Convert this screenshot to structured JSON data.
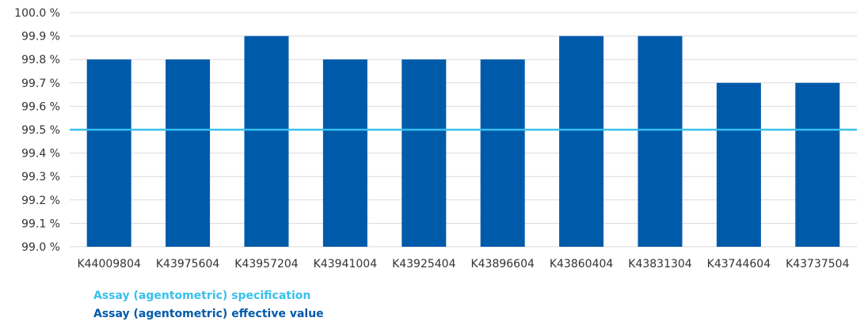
{
  "chart_data": {
    "type": "bar",
    "categories": [
      "K44009804",
      "K43975604",
      "K43957204",
      "K43941004",
      "K43925404",
      "K43896604",
      "K43860404",
      "K43831304",
      "K43744604",
      "K43737504"
    ],
    "series": [
      {
        "name": "Assay (agentometric) effective value",
        "values": [
          99.8,
          99.8,
          99.9,
          99.8,
          99.8,
          99.8,
          99.9,
          99.9,
          99.7,
          99.7
        ],
        "color": "#005aaa"
      }
    ],
    "reference_line": {
      "name": "Assay (agentometric) specification",
      "value": 99.5,
      "color": "#39c0ee"
    },
    "ylim": [
      99.0,
      100.0
    ],
    "yticks": [
      "99.0 %",
      "99.1 %",
      "99.2 %",
      "99.3 %",
      "99.4 %",
      "99.5 %",
      "99.6 %",
      "99.7 %",
      "99.8 %",
      "99.9 %",
      "100.0 %"
    ],
    "grid": true,
    "legend_position": "bottom-left",
    "title": "",
    "xlabel": "",
    "ylabel": ""
  }
}
